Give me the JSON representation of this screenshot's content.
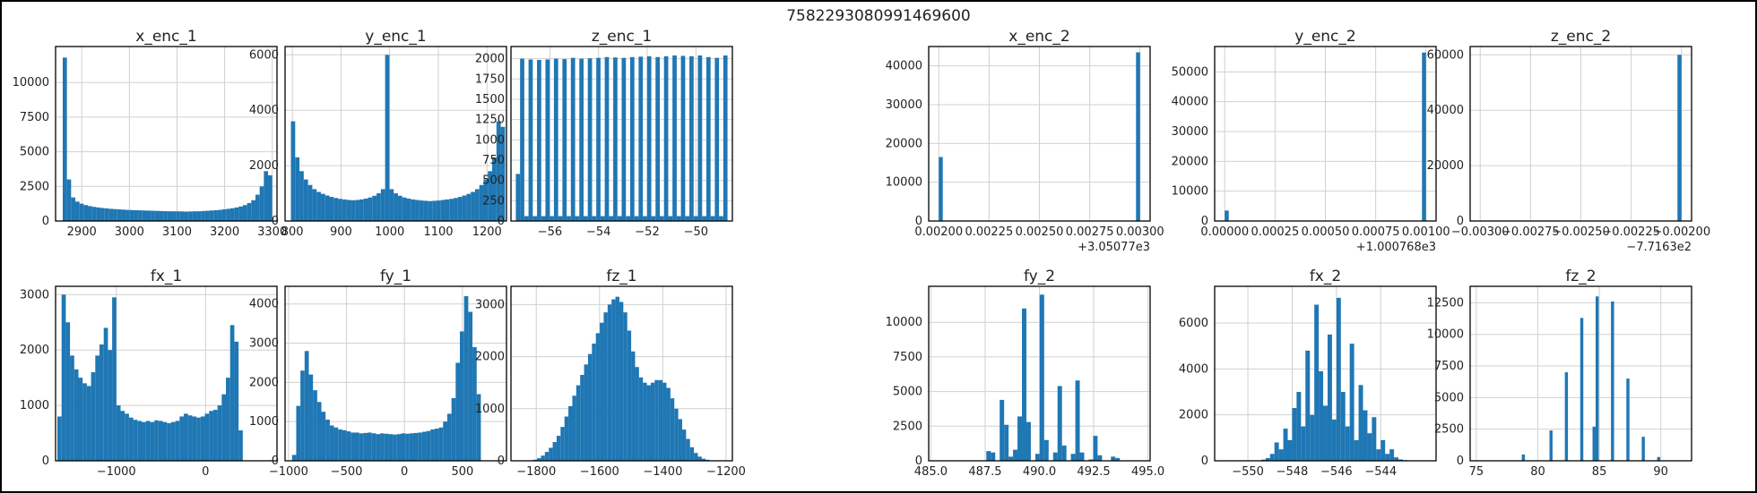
{
  "figure": {
    "suptitle": "7582293080991469600"
  },
  "chart_data": [
    {
      "type": "bar",
      "title": "x_enc_1",
      "xlim": [
        2845,
        3310
      ],
      "ylim": [
        0,
        12600
      ],
      "xticks": [
        2900,
        3000,
        3100,
        3200,
        3300
      ],
      "xtick_labels": [
        "2900",
        "3000",
        "3100",
        "3200",
        "3300"
      ],
      "yticks": [
        0,
        2500,
        5000,
        7500,
        10000
      ],
      "ytick_labels": [
        "0",
        "2500",
        "5000",
        "7500",
        "10000"
      ],
      "bin_start": 2860,
      "bin_width": 8.8,
      "values": [
        11800,
        3000,
        1700,
        1400,
        1250,
        1150,
        1080,
        1020,
        980,
        940,
        910,
        880,
        860,
        840,
        820,
        800,
        790,
        780,
        770,
        760,
        750,
        740,
        730,
        720,
        710,
        700,
        700,
        700,
        690,
        680,
        690,
        700,
        700,
        720,
        740,
        760,
        780,
        800,
        840,
        880,
        920,
        980,
        1050,
        1150,
        1300,
        1500,
        1900,
        2500,
        3600,
        3300
      ]
    },
    {
      "type": "bar",
      "title": "y_enc_1",
      "xlim": [
        785,
        1240
      ],
      "ylim": [
        0,
        6300
      ],
      "xticks": [
        800,
        900,
        1000,
        1100,
        1200
      ],
      "xtick_labels": [
        "800",
        "900",
        "1000",
        "1100",
        "1200"
      ],
      "yticks": [
        0,
        2000,
        4000,
        6000
      ],
      "ytick_labels": [
        "0",
        "2000",
        "4000",
        "6000"
      ],
      "bin_start": 797,
      "bin_width": 8.8,
      "values": [
        3600,
        2300,
        1800,
        1500,
        1300,
        1150,
        1050,
        980,
        920,
        870,
        830,
        800,
        780,
        760,
        750,
        760,
        780,
        810,
        850,
        910,
        1000,
        1150,
        6000,
        1150,
        1000,
        910,
        850,
        810,
        780,
        760,
        740,
        730,
        720,
        730,
        740,
        760,
        780,
        800,
        830,
        870,
        920,
        980,
        1050,
        1150,
        1300,
        1500,
        1800,
        2300,
        3600,
        3400
      ]
    },
    {
      "type": "bar",
      "title": "z_enc_1",
      "xlim": [
        -57.6,
        -48.5
      ],
      "ylim": [
        0,
        2150
      ],
      "xticks": [
        -56,
        -54,
        -52,
        -50
      ],
      "xtick_labels": [
        "−56",
        "−54",
        "−52",
        "−50"
      ],
      "yticks": [
        0,
        250,
        500,
        750,
        1000,
        1250,
        1500,
        1750,
        2000
      ],
      "ytick_labels": [
        "0",
        "250",
        "500",
        "750",
        "1000",
        "1250",
        "1500",
        "1750",
        "2000"
      ],
      "bin_start": -57.4,
      "bin_width": 0.174,
      "values": [
        580,
        2000,
        60,
        1990,
        60,
        1985,
        60,
        1990,
        60,
        2000,
        60,
        1995,
        60,
        2010,
        60,
        2000,
        60,
        2005,
        60,
        2010,
        60,
        2020,
        60,
        2015,
        60,
        2010,
        60,
        2020,
        60,
        2025,
        60,
        2030,
        60,
        2020,
        60,
        2030,
        60,
        2040,
        60,
        2035,
        60,
        2030,
        60,
        2040,
        60,
        2020,
        60,
        2010,
        60,
        2040
      ]
    },
    {
      "type": "bar",
      "title": "x_enc_2",
      "xlim": [
        0.00195,
        0.00305
      ],
      "ylim": [
        0,
        45000
      ],
      "xticks": [
        0.002,
        0.00225,
        0.0025,
        0.00275,
        0.003
      ],
      "xtick_labels": [
        "0.00200",
        "0.00225",
        "0.00250",
        "0.00275",
        "0.00300"
      ],
      "yticks": [
        0,
        10000,
        20000,
        30000,
        40000
      ],
      "ytick_labels": [
        "0",
        "10000",
        "20000",
        "30000",
        "40000"
      ],
      "offset_label": "+3.05077e3",
      "bin_start": 0.002,
      "bin_width": 2e-05,
      "spikes": [
        {
          "bin": 0,
          "value": 16500
        },
        {
          "bin": 49,
          "value": 43500
        }
      ]
    },
    {
      "type": "bar",
      "title": "y_enc_2",
      "xlim": [
        -5e-05,
        0.00105
      ],
      "ylim": [
        0,
        58500
      ],
      "xticks": [
        0,
        0.00025,
        0.0005,
        0.00075,
        0.001
      ],
      "xtick_labels": [
        "0.00000",
        "0.00025",
        "0.00050",
        "0.00075",
        "0.00100"
      ],
      "yticks": [
        0,
        10000,
        20000,
        30000,
        40000,
        50000
      ],
      "ytick_labels": [
        "0",
        "10000",
        "20000",
        "30000",
        "40000",
        "50000"
      ],
      "offset_label": "+1.000768e3",
      "bin_start": 0,
      "bin_width": 2e-05,
      "spikes": [
        {
          "bin": 0,
          "value": 3500
        },
        {
          "bin": 49,
          "value": 56500
        }
      ]
    },
    {
      "type": "bar",
      "title": "z_enc_2",
      "xlim": [
        -0.00305,
        -0.00195
      ],
      "ylim": [
        0,
        63000
      ],
      "xticks": [
        -0.003,
        -0.00275,
        -0.0025,
        -0.00225,
        -0.002
      ],
      "xtick_labels": [
        "−0.00300",
        "−0.00275",
        "−0.00250",
        "−0.00225",
        "−0.00200"
      ],
      "yticks": [
        0,
        20000,
        40000,
        60000
      ],
      "ytick_labels": [
        "0",
        "20000",
        "40000",
        "60000"
      ],
      "offset_label": "−7.7163e2",
      "bin_start": -0.003,
      "bin_width": 2e-05,
      "spikes": [
        {
          "bin": 49,
          "value": 60000
        }
      ]
    },
    {
      "type": "bar",
      "title": "fx_1",
      "xlim": [
        -1680,
        800
      ],
      "ylim": [
        0,
        3150
      ],
      "xticks": [
        -1000,
        0
      ],
      "xtick_labels": [
        "−1000",
        "0"
      ],
      "yticks": [
        0,
        1000,
        2000,
        3000
      ],
      "ytick_labels": [
        "0",
        "1000",
        "2000",
        "3000"
      ],
      "bin_start": -1660,
      "bin_width": 47.2,
      "values": [
        800,
        3000,
        2500,
        1900,
        1650,
        1500,
        1400,
        1350,
        1600,
        1900,
        2100,
        2400,
        2000,
        2950,
        1000,
        900,
        850,
        780,
        740,
        720,
        700,
        720,
        700,
        730,
        720,
        700,
        680,
        700,
        720,
        800,
        850,
        820,
        800,
        780,
        800,
        850,
        900,
        920,
        1000,
        1200,
        1500,
        2450,
        2150,
        550
      ]
    },
    {
      "type": "bar",
      "title": "fy_1",
      "xlim": [
        -1030,
        880
      ],
      "ylim": [
        0,
        4450
      ],
      "xticks": [
        -1000,
        -500,
        0,
        500
      ],
      "xtick_labels": [
        "−1000",
        "−500",
        "0",
        "500"
      ],
      "yticks": [
        0,
        1000,
        2000,
        3000,
        4000
      ],
      "ytick_labels": [
        "0",
        "1000",
        "2000",
        "3000",
        "4000"
      ],
      "bin_start": -970,
      "bin_width": 36.2,
      "values": [
        150,
        1400,
        2300,
        2800,
        2200,
        1800,
        1500,
        1250,
        1050,
        900,
        850,
        800,
        780,
        750,
        720,
        720,
        700,
        710,
        720,
        700,
        680,
        700,
        690,
        680,
        670,
        680,
        700,
        690,
        700,
        710,
        720,
        740,
        760,
        800,
        820,
        850,
        1000,
        1200,
        1600,
        2500,
        3300,
        4200,
        3800,
        2900,
        1700
      ]
    },
    {
      "type": "bar",
      "title": "fz_1",
      "xlim": [
        -1880,
        -1180
      ],
      "ylim": [
        0,
        3350
      ],
      "xticks": [
        -1800,
        -1600,
        -1400,
        -1200
      ],
      "xtick_labels": [
        "−1800",
        "−1600",
        "−1400",
        "−1200"
      ],
      "yticks": [
        0,
        1000,
        2000,
        3000
      ],
      "ytick_labels": [
        "0",
        "1000",
        "2000",
        "3000"
      ],
      "bin_start": -1810,
      "bin_width": 12.4,
      "values": [
        20,
        50,
        100,
        170,
        250,
        360,
        480,
        650,
        850,
        1050,
        1250,
        1450,
        1650,
        1850,
        2050,
        2250,
        2450,
        2650,
        2850,
        3000,
        3100,
        3150,
        3050,
        2850,
        2500,
        2100,
        1800,
        1600,
        1500,
        1450,
        1500,
        1550,
        1550,
        1500,
        1400,
        1200,
        1000,
        800,
        600,
        420,
        260,
        150,
        80,
        40,
        20
      ]
    },
    {
      "type": "bar",
      "title": "fy_2",
      "xlim": [
        484.9,
        495.1
      ],
      "ylim": [
        0,
        12600
      ],
      "xticks": [
        485,
        487.5,
        490,
        492.5,
        495
      ],
      "xtick_labels": [
        "485.0",
        "487.5",
        "490.0",
        "492.5",
        "495.0"
      ],
      "yticks": [
        0,
        2500,
        5000,
        7500,
        10000
      ],
      "ytick_labels": [
        "0",
        "2500",
        "5000",
        "7500",
        "10000"
      ],
      "bin_start": 485.3,
      "bin_width": 0.205,
      "values": [
        0,
        0,
        0,
        0,
        0,
        0,
        0,
        0,
        0,
        0,
        20,
        700,
        600,
        0,
        4400,
        2600,
        300,
        800,
        3200,
        11000,
        2800,
        0,
        500,
        12000,
        1500,
        0,
        600,
        5400,
        1100,
        0,
        500,
        5800,
        600,
        0,
        100,
        1800,
        400,
        0,
        0,
        300,
        200,
        0,
        0,
        20
      ]
    },
    {
      "type": "bar",
      "title": "fx_2",
      "xlim": [
        -551.5,
        -541.5
      ],
      "ylim": [
        0,
        7600
      ],
      "xticks": [
        -550,
        -548,
        -546,
        -544
      ],
      "xtick_labels": [
        "−550",
        "−548",
        "−546",
        "−544"
      ],
      "yticks": [
        0,
        2000,
        4000,
        6000
      ],
      "ytick_labels": [
        "0",
        "2000",
        "4000",
        "6000"
      ],
      "bin_start": -551.2,
      "bin_width": 0.2,
      "values": [
        0,
        0,
        0,
        0,
        0,
        0,
        0,
        0,
        0,
        50,
        120,
        300,
        800,
        500,
        1400,
        900,
        2300,
        3000,
        1500,
        4800,
        2000,
        6800,
        3900,
        2400,
        5500,
        1800,
        7100,
        3000,
        1500,
        5100,
        900,
        3300,
        2200,
        1200,
        1900,
        500,
        900,
        300,
        500,
        150,
        60,
        30
      ]
    },
    {
      "type": "bar",
      "title": "fz_2",
      "xlim": [
        74.5,
        92.5
      ],
      "ylim": [
        0,
        13800
      ],
      "xticks": [
        75,
        80,
        85,
        90
      ],
      "xtick_labels": [
        "75",
        "80",
        "85",
        "90"
      ],
      "yticks": [
        0,
        2500,
        5000,
        7500,
        10000,
        12500
      ],
      "ytick_labels": [
        "0",
        "2500",
        "5000",
        "7500",
        "10000",
        "12500"
      ],
      "bin_start": 78.7,
      "bin_width": 0.25,
      "values": [
        500,
        0,
        0,
        0,
        0,
        0,
        0,
        0,
        0,
        2400,
        0,
        0,
        0,
        0,
        7000,
        0,
        0,
        0,
        0,
        11300,
        0,
        0,
        0,
        2700,
        13000,
        0,
        0,
        0,
        0,
        12600,
        0,
        0,
        0,
        0,
        6500,
        0,
        0,
        0,
        0,
        1900,
        0,
        0,
        0,
        0,
        300
      ]
    }
  ]
}
